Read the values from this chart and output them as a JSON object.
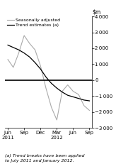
{
  "ylim": [
    -3000,
    4000
  ],
  "yticks": [
    -3000,
    -2000,
    -1000,
    0,
    1000,
    2000,
    3000,
    4000
  ],
  "xlabel_months": [
    "Jun",
    "Sep",
    "Dec",
    "Mar",
    "Jun",
    "Sep"
  ],
  "xlabel_years": [
    "2011",
    "",
    "",
    "2012",
    "",
    ""
  ],
  "x_positions": [
    0,
    3,
    6,
    9,
    12,
    15
  ],
  "trend_x": [
    0,
    1,
    2,
    3,
    4,
    5,
    6,
    7,
    8,
    9,
    10,
    11,
    12,
    13,
    14,
    15
  ],
  "trend_y": [
    2200,
    2050,
    1900,
    1700,
    1450,
    1100,
    700,
    200,
    -200,
    -500,
    -750,
    -950,
    -1050,
    -1150,
    -1250,
    -1300
  ],
  "seas_x": [
    0,
    1,
    2,
    3,
    4,
    5,
    6,
    7,
    8,
    9,
    10,
    11,
    12,
    13,
    14,
    15
  ],
  "seas_y": [
    1300,
    800,
    1700,
    2800,
    2300,
    1900,
    900,
    -500,
    -1700,
    -2500,
    -700,
    -300,
    -700,
    -900,
    -1600,
    -1900
  ],
  "trend_color": "#000000",
  "seas_color": "#aaaaaa",
  "legend_labels": [
    "Trend estimates (a)",
    "Seasonally adjusted"
  ],
  "footnote": "(a) Trend breaks have been applied\nto July 2011 and January 2012.",
  "background_color": "#ffffff",
  "zero_line_color": "#000000"
}
